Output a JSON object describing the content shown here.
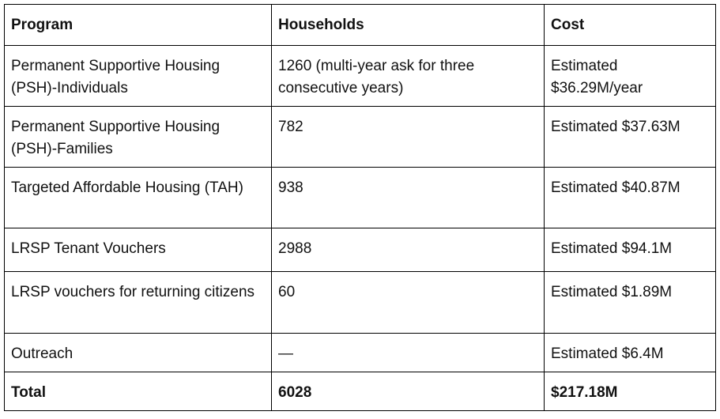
{
  "table": {
    "header": [
      "Program",
      "Households",
      "Cost"
    ],
    "rows": [
      [
        "Permanent Supportive Housing (PSH)-Individuals",
        "1260 (multi-year ask for three consecutive years)",
        "Estimated $36.29M/year"
      ],
      [
        "Permanent Supportive Housing (PSH)-Families",
        "782",
        "Estimated $37.63M"
      ],
      [
        "Targeted Affordable Housing (TAH)",
        "938",
        "Estimated $40.87M"
      ],
      [
        "LRSP Tenant Vouchers",
        "2988",
        "Estimated $94.1M"
      ],
      [
        "LRSP vouchers for returning citizens",
        "60",
        "Estimated $1.89M"
      ],
      [
        "Outreach",
        "—",
        "Estimated $6.4M"
      ]
    ],
    "total": [
      "Total",
      "6028",
      "$217.18M"
    ]
  }
}
